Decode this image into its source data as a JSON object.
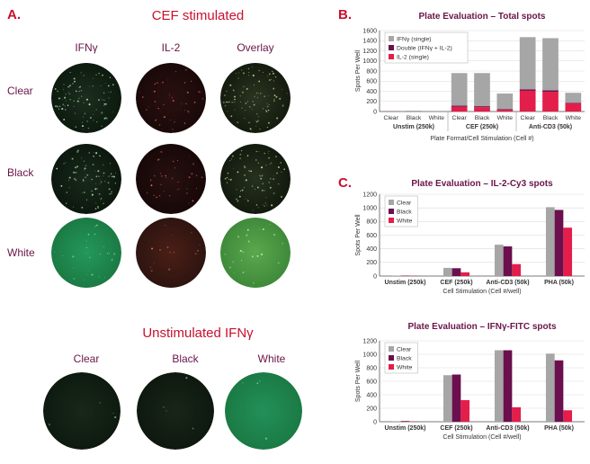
{
  "panel_a": {
    "letter": "A.",
    "title": "CEF stimulated",
    "columns": [
      "IFNγ",
      "IL-2",
      "Overlay"
    ],
    "rows": [
      "Clear",
      "Black",
      "White"
    ],
    "unstim_title": "Unstimulated IFNγ",
    "unstim_columns": [
      "Clear",
      "Black",
      "White"
    ],
    "colors": {
      "title": "#c8102e",
      "label": "#6a1449"
    }
  },
  "panel_b": {
    "letter": "B."
  },
  "panel_c": {
    "letter": "C."
  },
  "chart_data": [
    {
      "id": "total",
      "type": "bar",
      "stacked": true,
      "title": "Plate Evaluation – Total spots",
      "xlabel": "Plate Format/Cell Stimulation (Cell #)",
      "ylabel": "Spots Per Well",
      "ylim": [
        0,
        1600
      ],
      "yticks": [
        0,
        200,
        400,
        600,
        800,
        1000,
        1200,
        1400,
        1600
      ],
      "categories": [
        "Clear",
        "Black",
        "White",
        "Clear",
        "Black",
        "White",
        "Clear",
        "Black",
        "White"
      ],
      "groups": [
        "Unstim (250k)",
        "CEF (250k)",
        "Anti-CD3 (50k)"
      ],
      "series": [
        {
          "name": "IL-2 (single)",
          "color": "#e31e4a",
          "values": [
            3,
            3,
            2,
            95,
            85,
            35,
            410,
            390,
            160
          ]
        },
        {
          "name": "Double (IFNγ + IL-2)",
          "color": "#6b0f4e",
          "values": [
            1,
            1,
            1,
            20,
            20,
            10,
            30,
            30,
            10
          ]
        },
        {
          "name": "IFNγ (single)",
          "color": "#a6a6a6",
          "values": [
            8,
            10,
            8,
            645,
            655,
            310,
            1030,
            1030,
            200
          ]
        }
      ],
      "legend": [
        "IFNγ (single)",
        "Double (IFNγ + IL-2)",
        "IL-2 (single)"
      ],
      "legend_position": "top-left"
    },
    {
      "id": "il2",
      "type": "bar",
      "title": "Plate Evaluation – IL-2-Cy3 spots",
      "xlabel": "Cell Stimulation (Cell #/well)",
      "ylabel": "Spots Per Well",
      "ylim": [
        0,
        1200
      ],
      "yticks": [
        0,
        200,
        400,
        600,
        800,
        1000,
        1200
      ],
      "categories": [
        "Unstim (250k)",
        "CEF (250k)",
        "Anti-CD3 (50k)",
        "PHA (50k)"
      ],
      "series": [
        {
          "name": "Clear",
          "color": "#a6a6a6",
          "values": [
            5,
            120,
            460,
            1010
          ]
        },
        {
          "name": "Black",
          "color": "#6b0f4e",
          "values": [
            5,
            115,
            435,
            970
          ]
        },
        {
          "name": "White",
          "color": "#e31e4a",
          "values": [
            4,
            55,
            175,
            710
          ]
        }
      ],
      "legend_position": "top-left"
    },
    {
      "id": "ifng",
      "type": "bar",
      "title": "Plate Evaluation – IFNγ-FITC spots",
      "xlabel": "Cell Stimulation (Cell #/well)",
      "ylabel": "Spots Per Well",
      "ylim": [
        0,
        1200
      ],
      "yticks": [
        0,
        200,
        400,
        600,
        800,
        1000,
        1200
      ],
      "categories": [
        "Unstim (250k)",
        "CEF (250k)",
        "Anti-CD3 (50k)",
        "PHA (50k)"
      ],
      "series": [
        {
          "name": "Clear",
          "color": "#a6a6a6",
          "values": [
            8,
            690,
            1060,
            1010
          ]
        },
        {
          "name": "Black",
          "color": "#6b0f4e",
          "values": [
            10,
            700,
            1060,
            910
          ]
        },
        {
          "name": "White",
          "color": "#e31e4a",
          "values": [
            5,
            320,
            215,
            170
          ]
        }
      ],
      "legend_position": "top-left"
    }
  ]
}
